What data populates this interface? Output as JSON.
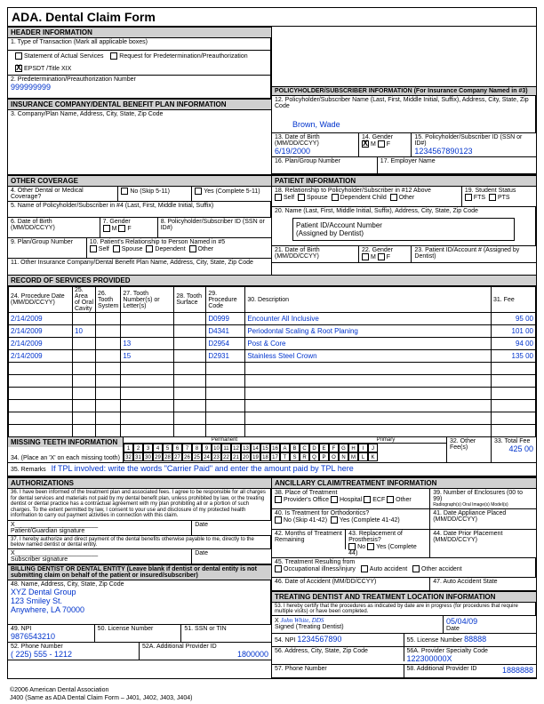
{
  "title": "Dental Claim Form",
  "ada": "ADA.",
  "hdr": {
    "header_info": "HEADER INFORMATION",
    "type_trans": "1. Type of Transaction (Mark all applicable boxes)",
    "stmt_actual": "Statement of Actual Services",
    "req_predet": "Request for Predetermination/Preauthorization",
    "epsdt": "EPSDT /Title XIX",
    "predet_num_lbl": "2. Predetermination/Preauthorization Number",
    "predet_num": "999999999"
  },
  "ins": {
    "hdr": "INSURANCE COMPANY/DENTAL BENEFIT PLAN INFORMATION",
    "company": "3. Company/Plan Name, Address, City, State, Zip Code"
  },
  "other": {
    "hdr": "OTHER COVERAGE",
    "q4": "4. Other Dental or Medical Coverage?",
    "no": "No  (Skip 5-11)",
    "yes": "Yes (Complete 5-11)",
    "q5": "5. Name of Policyholder/Subscriber in #4 (Last, First, Middle Initial, Suffix)",
    "q6": "6. Date of Birth (MM/DD/CCYY)",
    "q7": "7. Gender",
    "q8": "8. Policyholder/Subscriber ID (SSN or ID#)",
    "q9": "9. Plan/Group Number",
    "q10": "10. Patient's Relationship to Person Named in #5",
    "self": "Self",
    "spouse": "Spouse",
    "dep": "Dependent",
    "oth": "Other",
    "q11": "11. Other Insurance Company/Dental Benefit Plan Name, Address, City, State, Zip Code"
  },
  "policy": {
    "hdr": "POLICYHOLDER/SUBSCRIBER INFORMATION (For Insurance Company Named in #3)",
    "q12": "12. Policyholder/Subscriber Name (Last, First, Middle Initial, Suffix), Address, City, State, Zip Code",
    "name": "Brown, Wade",
    "q13": "13. Date of Birth (MM/DD/CCYY)",
    "dob": "6/19/2000",
    "q14": "14. Gender",
    "q15": "15. Policyholder/Subscriber ID (SSN or ID#)",
    "id": "1234567890123",
    "q16": "16. Plan/Group Number",
    "q17": "17. Employer Name"
  },
  "patient": {
    "hdr": "PATIENT INFORMATION",
    "q18": "18. Relationship to Policyholder/Subscriber in #12 Above",
    "self": "Self",
    "spouse": "Spouse",
    "dep": "Dependent Child",
    "oth": "Other",
    "q19": "19. Student Status",
    "fts": "FTS",
    "pts": "PTS",
    "q20": "20. Name (Last, First, Middle Initial, Suffix), Address, City, State, Zip Code",
    "callout1": "Patient ID/Account Number",
    "callout2": "(Assigned by Dentist)",
    "q21": "21. Date of Birth (MM/DD/CCYY)",
    "q22": "22. Gender",
    "q23": "23. Patient ID/Account # (Assigned by Dentist)"
  },
  "svc": {
    "hdr": "RECORD OF SERVICES PROVIDED",
    "c24": "24. Procedure Date (MM/DD/CCYY)",
    "c25": "25. Area of Oral Cavity",
    "c26": "26. Tooth System",
    "c27": "27. Tooth Number(s) or Letter(s)",
    "c28": "28. Tooth Surface",
    "c29": "29. Procedure Code",
    "c30": "30. Description",
    "c31": "31. Fee",
    "rows": [
      {
        "date": "2/14/2009",
        "area": "",
        "sys": "",
        "tooth": "",
        "surf": "",
        "code": "D0999",
        "desc": "Encounter All Inclusive",
        "fee": "95 00"
      },
      {
        "date": "2/14/2009",
        "area": "10",
        "sys": "",
        "tooth": "",
        "surf": "",
        "code": "D4341",
        "desc": "Periodontal Scaling & Root Planing",
        "fee": "101 00"
      },
      {
        "date": "2/14/2009",
        "area": "",
        "sys": "",
        "tooth": "13",
        "surf": "",
        "code": "D2954",
        "desc": "Post & Core",
        "fee": "94 00"
      },
      {
        "date": "2/14/2009",
        "area": "",
        "sys": "",
        "tooth": "15",
        "surf": "",
        "code": "D2931",
        "desc": "Stainless Steel Crown",
        "fee": "135 00"
      }
    ]
  },
  "missing": {
    "hdr": "MISSING TEETH INFORMATION",
    "q34": "34. (Place an 'X' on each missing tooth)",
    "perm": "Permanent",
    "prim": "Primary",
    "q32": "32. Other Fee(s)",
    "q33": "33. Total Fee",
    "total": "425 00",
    "top": [
      "1",
      "2",
      "3",
      "4",
      "5",
      "6",
      "7",
      "8",
      "9",
      "10",
      "11",
      "12",
      "13",
      "14",
      "15",
      "16",
      "A",
      "B",
      "C",
      "D",
      "E",
      "F",
      "G",
      "H",
      "I",
      "J"
    ],
    "bot": [
      "32",
      "31",
      "30",
      "29",
      "28",
      "27",
      "26",
      "25",
      "24",
      "23",
      "22",
      "21",
      "20",
      "19",
      "18",
      "17",
      "T",
      "S",
      "R",
      "Q",
      "P",
      "O",
      "N",
      "M",
      "L",
      "K"
    ]
  },
  "remarks_lbl": "35. Remarks",
  "remarks": "If TPL involved: write the words \"Carrier Paid\" and enter the amount paid by TPL here",
  "auth": {
    "hdr": "AUTHORIZATIONS",
    "t36": "36. I have been informed of the treatment plan and associated fees. I agree to be responsible for all charges for dental services and materials not paid by my dental benefit plan, unless prohibited by law, or the treating dentist or dental practice has a contractual agreement with my plan prohibiting all or a portion of such charges. To the extent permitted by law, I consent to your use and disclosure of my protected health information to carry out payment activities in connection with this claim.",
    "sig36": "Patient/Guardian signature",
    "date": "Date",
    "t37": "37. I hereby authorize and direct payment of the dental benefits otherwise payable to me, directly to the below named dentist or dental entity.",
    "sig37": "Subscriber signature"
  },
  "anc": {
    "hdr": "ANCILLARY CLAIM/TREATMENT INFORMATION",
    "q38": "38. Place of Treatment",
    "office": "Provider's Office",
    "hosp": "Hospital",
    "ecf": "ECF",
    "other": "Other",
    "q39": "39. Number of Enclosures (00 to 99)",
    "q39b": "Radiograph(s)  Oral Image(s)  Model(s)",
    "q40": "40. Is Treatment for Orthodontics?",
    "no": "No (Skip 41-42)",
    "yes": "Yes (Complete 41-42)",
    "q41": "41. Date Appliance Placed (MM/DD/CCYY)",
    "q42": "42. Months of Treatment Remaining",
    "q43": "43. Replacement of Prosthesis?",
    "no2": "No",
    "yes2": "Yes (Complete 44)",
    "q44": "44. Date Prior Placement (MM/DD/CCYY)",
    "q45": "45. Treatment Resulting from",
    "occ": "Occupational illness/injury",
    "auto": "Auto accident",
    "othacc": "Other accident",
    "q46": "46. Date of Accident (MM/DD/CCYY)",
    "q47": "47. Auto Accident State"
  },
  "bill": {
    "hdr": "BILLING DENTIST OR DENTAL ENTITY (Leave blank if dentist or dental entity is not submitting claim on behalf of the patient or insured/subscriber)",
    "q48": "48. Name, Address, City, State, Zip Code",
    "name": "XYZ Dental Group",
    "addr": "123 Smiley St.",
    "city": "Anywhere, LA 70000",
    "q49": "49. NPI",
    "npi": "9876543210",
    "q50": "50. License Number",
    "q51": "51. SSN or TIN",
    "q52": "52. Phone Number",
    "phone": "( 225) 555 - 1212",
    "q52a": "52A. Additional Provider ID",
    "provid": "1800000"
  },
  "treat": {
    "hdr": "TREATING DENTIST AND TREATMENT LOCATION INFORMATION",
    "t53": "53. I hereby certify that the procedures as indicated by date are in progress (for procedures that require multiple visits) or have been completed.",
    "sig": "John White, DDS",
    "siglbl": "Signed (Treating Dentist)",
    "date": "05/04/09",
    "datelbl": "Date",
    "q54": "54. NPI",
    "npi": "1234567890",
    "q55": "55. License Number",
    "lic": "88888",
    "q56": "56. Address, City, State, Zip Code",
    "q56a": "56A. Provider Specialty Code",
    "spec": "122300000X",
    "q57": "57. Phone Number",
    "q58": "58. Additional Provider ID",
    "addl": "1888888"
  },
  "foot1": "©2006 American Dental Association",
  "foot2": "J400 (Same as ADA Dental Claim Form – J401, J402, J403, J404)"
}
